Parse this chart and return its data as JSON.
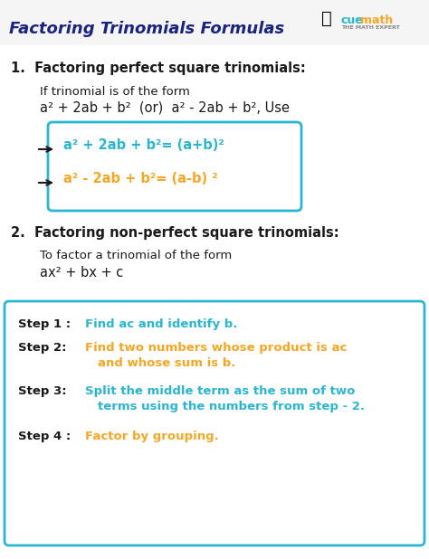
{
  "title": "Factoring Trinomials Formulas",
  "title_color": "#1a237e",
  "bg_color": "#ffffff",
  "cyan_color": "#29b6d0",
  "orange_color": "#f5a623",
  "dark_color": "#1a1a1a",
  "gray_color": "#888888",
  "section1_heading": "1.  Factoring perfect square trinomials:",
  "section2_heading": "2.  Factoring non-perfect square trinomials:",
  "figsize": [
    4.74,
    6.18
  ],
  "dpi": 100
}
